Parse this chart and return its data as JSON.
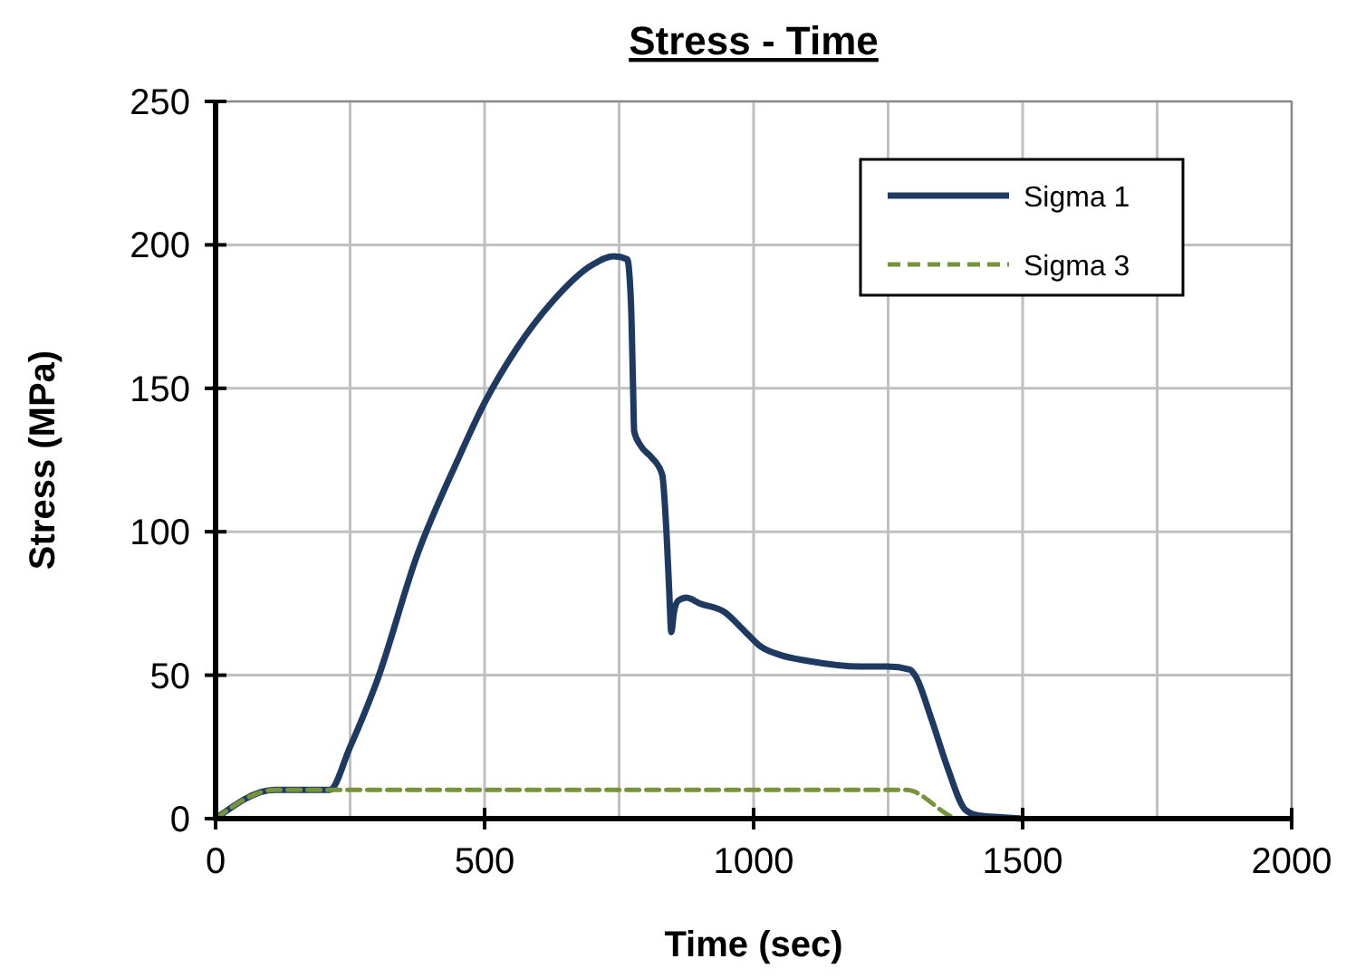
{
  "chart_data": {
    "type": "line",
    "title": "Stress - Time",
    "xlabel": "Time (sec)",
    "ylabel": "Stress (MPa)",
    "xlim": [
      0,
      2000
    ],
    "xticks": [
      0,
      500,
      1000,
      1500,
      2000
    ],
    "ylim": [
      0,
      250
    ],
    "yticks": [
      0,
      50,
      100,
      150,
      200,
      250
    ],
    "grid": true,
    "legend": "top right",
    "series": [
      {
        "name": "Sigma 1",
        "color": "#1f3a60",
        "line_style": "solid",
        "x": [
          0,
          110,
          212,
          250,
          300,
          375,
          450,
          500,
          560,
          625,
          700,
          740,
          765,
          772,
          776,
          778,
          790,
          810,
          830,
          838,
          843,
          847,
          852,
          860,
          875,
          900,
          946,
          980,
          1013,
          1050,
          1100,
          1200,
          1249,
          1290,
          1300,
          1330,
          1360,
          1394,
          1420,
          1460,
          1500
        ],
        "values": [
          0,
          10,
          10,
          25,
          48,
          92,
          125,
          145,
          164,
          180,
          193,
          196,
          195,
          180,
          150,
          135,
          130,
          126,
          120,
          100,
          80,
          65,
          72,
          76,
          77,
          75,
          72,
          66,
          60,
          57,
          55,
          53,
          53,
          52,
          50,
          35,
          18,
          3,
          1,
          0.5,
          0
        ]
      },
      {
        "name": "Sigma 3",
        "color": "#77933c",
        "line_style": "dashed",
        "x": [
          0,
          110,
          1284,
          1384,
          1500
        ],
        "values": [
          0,
          10,
          10,
          0,
          0
        ]
      }
    ]
  }
}
